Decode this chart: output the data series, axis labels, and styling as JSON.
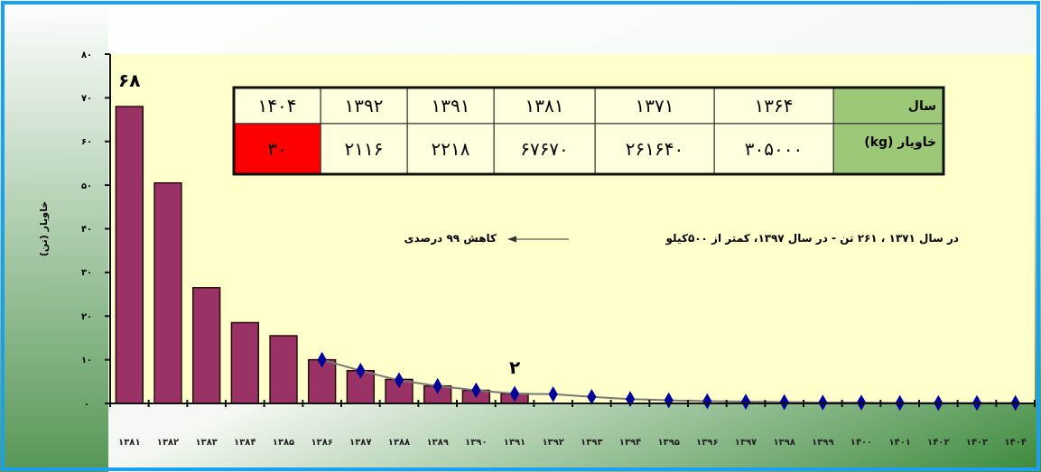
{
  "chart_data": {
    "type": "bar",
    "ylabel": "خاویار (تن)",
    "categories": [
      "۱۳۸۱",
      "۱۳۸۲",
      "۱۳۸۳",
      "۱۳۸۴",
      "۱۳۸۵",
      "۱۳۸۶",
      "۱۳۸۷",
      "۱۳۸۸",
      "۱۳۸۹",
      "۱۳۹۰",
      "۱۳۹۱",
      "۱۳۹۲",
      "۱۳۹۳",
      "۱۳۹۴",
      "۱۳۹۵",
      "۱۳۹۶",
      "۱۳۹۷",
      "۱۳۹۸",
      "۱۳۹۹",
      "۱۴۰۰",
      "۱۴۰۱",
      "۱۴۰۲",
      "۱۴۰۳",
      "۱۴۰۴"
    ],
    "series": [
      {
        "color": "#993366",
        "values": [
          68,
          50.5,
          26.5,
          18.5,
          15.5,
          10,
          7.5,
          5.5,
          4,
          3,
          2.2,
          null,
          null,
          null,
          null,
          null,
          null,
          null,
          null,
          null,
          null,
          null,
          null,
          null
        ]
      },
      {
        "type": "line",
        "color": "#000099",
        "marker": "diamond",
        "values": [
          null,
          null,
          null,
          null,
          null,
          10,
          7.5,
          5.3,
          4,
          3,
          2.2,
          2.1,
          1.5,
          1,
          0.7,
          0.5,
          0.4,
          0.3,
          0.2,
          0.2,
          0.1,
          0.1,
          0.1,
          0.1
        ]
      }
    ],
    "ylim": [
      0,
      80
    ],
    "yticks": [
      {
        "value": 0,
        "label": "۰"
      },
      {
        "value": 10,
        "label": "۱۰"
      },
      {
        "value": 20,
        "label": "۲۰"
      },
      {
        "value": 30,
        "label": "۳۰"
      },
      {
        "value": 40,
        "label": "۴۰"
      },
      {
        "value": 50,
        "label": "۵۰"
      },
      {
        "value": 60,
        "label": "۶۰"
      },
      {
        "value": 70,
        "label": "۷۰"
      },
      {
        "value": 80,
        "label": "۸۰"
      }
    ],
    "grid": false,
    "annotations": [
      {
        "text": "۶۸",
        "x": "۱۳۸۱",
        "y": 68
      },
      {
        "text": "۲",
        "x": "۱۳۹۱",
        "y": 2.2
      },
      "سال",
      "۱۳۶۴",
      "۱۳۷۱",
      "۱۳۸۱",
      "۱۳۹۱",
      "۱۳۹۲",
      "۱۴۰۴",
      "خاویار (kg)",
      "۳۰۵۰۰۰",
      "۲۶۱۶۴۰",
      "۶۷۶۷۰",
      "۲۲۱۸",
      "۲۱۱۶",
      "۳۰",
      "در سال ۱۳۷۱ ، ۲۶۱ تن - در سال ۱۳۹۷،   کمتر از ۵۰۰کیلو",
      "کاهش ۹۹ درصدی"
    ]
  }
}
